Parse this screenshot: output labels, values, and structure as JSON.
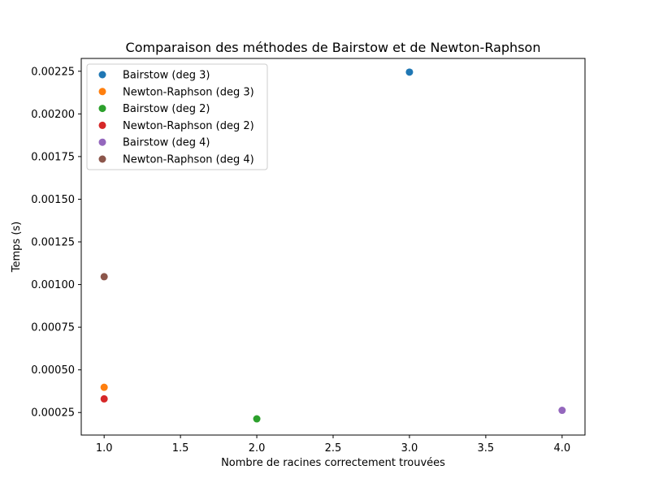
{
  "chart_data": {
    "type": "scatter",
    "title": "Comparaison des méthodes de Bairstow et de Newton-Raphson",
    "xlabel": "Nombre de racines correctement trouvées",
    "ylabel": "Temps (s)",
    "xlim": [
      0.85,
      4.15
    ],
    "ylim": [
      0.000118,
      0.002325
    ],
    "xticks": [
      {
        "value": 1.0,
        "label": "1.0"
      },
      {
        "value": 1.5,
        "label": "1.5"
      },
      {
        "value": 2.0,
        "label": "2.0"
      },
      {
        "value": 2.5,
        "label": "2.5"
      },
      {
        "value": 3.0,
        "label": "3.0"
      },
      {
        "value": 3.5,
        "label": "3.5"
      },
      {
        "value": 4.0,
        "label": "4.0"
      }
    ],
    "yticks": [
      {
        "value": 0.00025,
        "label": "0.00025"
      },
      {
        "value": 0.0005,
        "label": "0.00050"
      },
      {
        "value": 0.00075,
        "label": "0.00075"
      },
      {
        "value": 0.001,
        "label": "0.00100"
      },
      {
        "value": 0.00125,
        "label": "0.00125"
      },
      {
        "value": 0.0015,
        "label": "0.00150"
      },
      {
        "value": 0.00175,
        "label": "0.00175"
      },
      {
        "value": 0.002,
        "label": "0.00200"
      },
      {
        "value": 0.00225,
        "label": "0.00225"
      }
    ],
    "grid": false,
    "legend_position": "top-left",
    "series": [
      {
        "name": "Bairstow (deg 3)",
        "color": "#1f77b4",
        "points": [
          {
            "x": 3,
            "y": 0.002245
          }
        ]
      },
      {
        "name": "Newton-Raphson (deg 3)",
        "color": "#ff7f0e",
        "points": [
          {
            "x": 1,
            "y": 0.000398
          }
        ]
      },
      {
        "name": "Bairstow (deg 2)",
        "color": "#2ca02c",
        "points": [
          {
            "x": 2,
            "y": 0.000213
          }
        ]
      },
      {
        "name": "Newton-Raphson (deg 2)",
        "color": "#d62728",
        "points": [
          {
            "x": 1,
            "y": 0.00033
          }
        ]
      },
      {
        "name": "Bairstow (deg 4)",
        "color": "#9467bd",
        "points": [
          {
            "x": 4,
            "y": 0.000263
          }
        ]
      },
      {
        "name": "Newton-Raphson (deg 4)",
        "color": "#8c564b",
        "points": [
          {
            "x": 1,
            "y": 0.001046
          }
        ]
      }
    ]
  }
}
